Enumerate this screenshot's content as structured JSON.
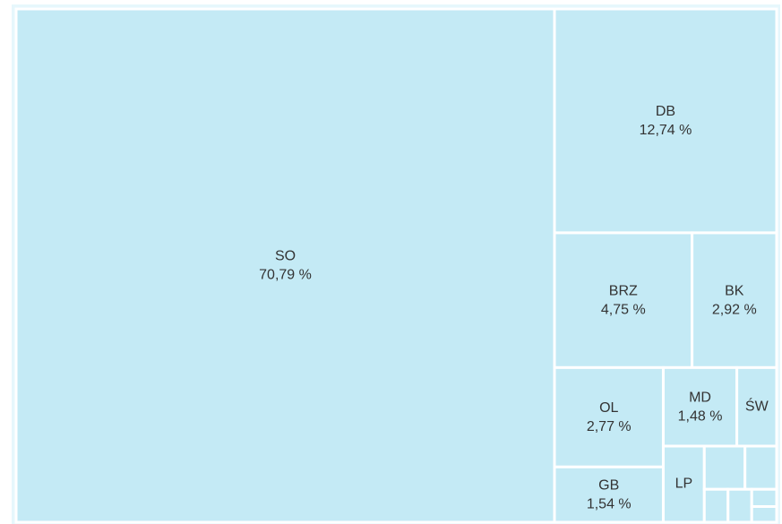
{
  "chart_data": {
    "type": "treemap",
    "categories": [
      "SO",
      "DB",
      "BRZ",
      "BK",
      "OL",
      "MD",
      "ŚW",
      "GB",
      "LP",
      null,
      null,
      null,
      null,
      null,
      null
    ],
    "values": [
      70.79,
      12.74,
      4.75,
      2.92,
      2.77,
      1.48,
      0.8,
      1.54,
      0.8,
      0.45,
      0.35,
      0.2,
      0.2,
      0.11,
      0.1
    ],
    "value_labels": [
      "70,79 %",
      "12,74 %",
      "4,75 %",
      "2,92 %",
      "2,77 %",
      "1,48 %",
      null,
      "1,54 %",
      null,
      null,
      null,
      null,
      null,
      null,
      null
    ],
    "color": "#c4eaf5"
  }
}
